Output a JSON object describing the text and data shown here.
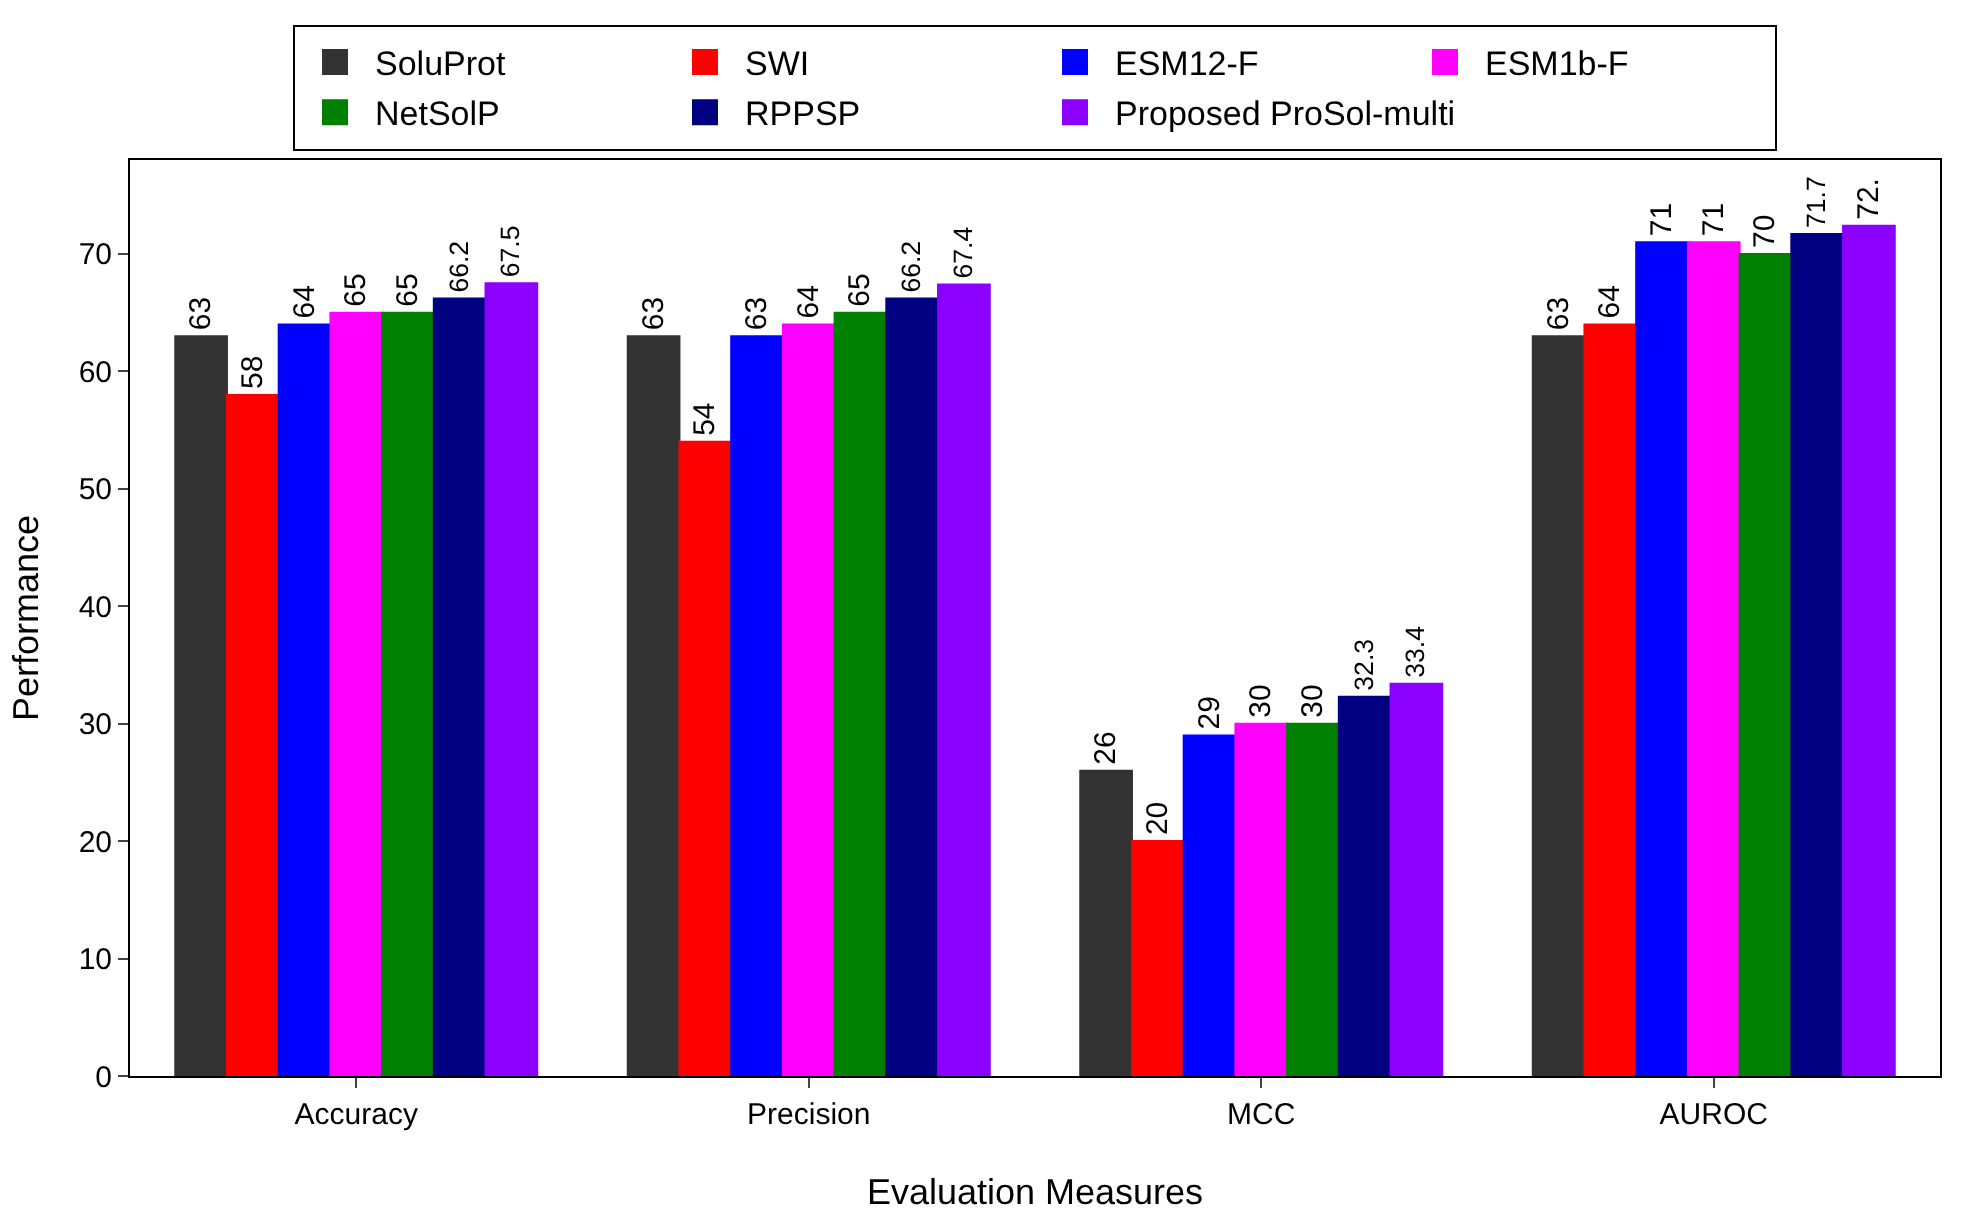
{
  "chart_data": {
    "type": "bar",
    "xlabel": "Evaluation Measures",
    "ylabel": "Performance",
    "categories": [
      "Accuracy",
      "Precision",
      "MCC",
      "AUROC"
    ],
    "series": [
      {
        "name": "SoluProt",
        "color": "#333333",
        "values": [
          63,
          63,
          26,
          63
        ],
        "value_labels": [
          "63",
          "63",
          "26",
          "63"
        ]
      },
      {
        "name": "SWI",
        "color": "#ff0000",
        "values": [
          58,
          54,
          20,
          64
        ],
        "value_labels": [
          "58",
          "54",
          "20",
          "64"
        ]
      },
      {
        "name": "ESM12-F",
        "color": "#0000ff",
        "values": [
          64,
          63,
          29,
          71
        ],
        "value_labels": [
          "64",
          "63",
          "29",
          "71"
        ]
      },
      {
        "name": "ESM1b-F",
        "color": "#ff00ff",
        "values": [
          65,
          64,
          30,
          71
        ],
        "value_labels": [
          "65",
          "64",
          "30",
          "71"
        ]
      },
      {
        "name": "NetSolP",
        "color": "#008000",
        "values": [
          65,
          65,
          30,
          70
        ],
        "value_labels": [
          "65",
          "65",
          "30",
          "70"
        ]
      },
      {
        "name": "RPPSP",
        "color": "#000080",
        "values": [
          66.2,
          66.2,
          32.3,
          71.7
        ],
        "value_labels": [
          "66.2",
          "66.2",
          "32.3",
          "71.7"
        ]
      },
      {
        "name": "Proposed ProSol-multi",
        "color": "#8b00ff",
        "values": [
          67.5,
          67.4,
          33.4,
          72.4
        ],
        "value_labels": [
          "67.5",
          "67.4",
          "33.4",
          "72."
        ]
      }
    ],
    "ylim": [
      0,
      78
    ],
    "yticks": [
      0,
      10,
      20,
      30,
      40,
      50,
      60,
      70
    ],
    "grid": false,
    "legend": "top"
  }
}
